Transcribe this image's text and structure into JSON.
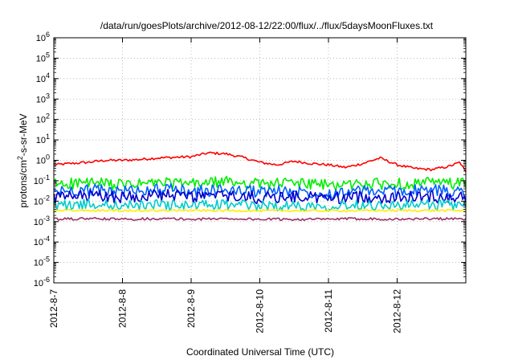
{
  "chart_data": {
    "type": "line",
    "title": "/data/run/goesPlots/archive/2012-08-12/22:00/flux/../flux/5daysMoonFluxes.txt",
    "xlabel": "Coordinated Universal Time (UTC)",
    "ylabel": "protons/cm²-s-sr-MeV",
    "ylabel_parts": {
      "before": "protons/cm",
      "sup": "2",
      "after": "-s-sr-MeV"
    },
    "yscale": "log",
    "ylim": [
      1e-06,
      1000000.0
    ],
    "y_ticks": [
      {
        "value": 1e-06,
        "base": "10",
        "exp": "-6"
      },
      {
        "value": 1e-05,
        "base": "10",
        "exp": "-5"
      },
      {
        "value": 0.0001,
        "base": "10",
        "exp": "-4"
      },
      {
        "value": 0.001,
        "base": "10",
        "exp": "-3"
      },
      {
        "value": 0.01,
        "base": "10",
        "exp": "-2"
      },
      {
        "value": 0.1,
        "base": "10",
        "exp": "-1"
      },
      {
        "value": 1.0,
        "base": "10",
        "exp": "0"
      },
      {
        "value": 10.0,
        "base": "10",
        "exp": "1"
      },
      {
        "value": 100.0,
        "base": "10",
        "exp": "2"
      },
      {
        "value": 1000.0,
        "base": "10",
        "exp": "3"
      },
      {
        "value": 10000.0,
        "base": "10",
        "exp": "4"
      },
      {
        "value": 100000.0,
        "base": "10",
        "exp": "5"
      },
      {
        "value": 1000000.0,
        "base": "10",
        "exp": "6"
      }
    ],
    "xlim": [
      "2012-08-07",
      "2012-08-13"
    ],
    "x_ticks": [
      {
        "date": "2012-08-07",
        "label": "2012-8-7"
      },
      {
        "date": "2012-08-08",
        "label": "2012-8-8"
      },
      {
        "date": "2012-08-09",
        "label": "2012-8-9"
      },
      {
        "date": "2012-08-10",
        "label": "2012-8-10"
      },
      {
        "date": "2012-08-11",
        "label": "2012-8-11"
      },
      {
        "date": "2012-08-12",
        "label": "2012-8-12"
      }
    ],
    "grid": true,
    "series": [
      {
        "color": "#ff0000",
        "data": [
          [
            "2012-08-07 00:00",
            0.6
          ],
          [
            "2012-08-07 06:00",
            0.7
          ],
          [
            "2012-08-07 12:00",
            0.8
          ],
          [
            "2012-08-07 18:00",
            1.0
          ],
          [
            "2012-08-08 00:00",
            1.0
          ],
          [
            "2012-08-08 06:00",
            1.1
          ],
          [
            "2012-08-08 12:00",
            1.3
          ],
          [
            "2012-08-08 18:00",
            1.4
          ],
          [
            "2012-08-09 00:00",
            1.5
          ],
          [
            "2012-08-09 06:00",
            2.3
          ],
          [
            "2012-08-09 12:00",
            2.1
          ],
          [
            "2012-08-09 18:00",
            1.4
          ],
          [
            "2012-08-10 00:00",
            0.8
          ],
          [
            "2012-08-10 06:00",
            0.6
          ],
          [
            "2012-08-10 12:00",
            0.9
          ],
          [
            "2012-08-10 18:00",
            0.7
          ],
          [
            "2012-08-11 00:00",
            0.6
          ],
          [
            "2012-08-11 06:00",
            0.45
          ],
          [
            "2012-08-11 12:00",
            0.7
          ],
          [
            "2012-08-11 18:00",
            1.3
          ],
          [
            "2012-08-12 00:00",
            0.6
          ],
          [
            "2012-08-12 06:00",
            0.4
          ],
          [
            "2012-08-12 12:00",
            0.35
          ],
          [
            "2012-08-12 18:00",
            0.5
          ],
          [
            "2012-08-12 22:00",
            0.8
          ],
          [
            "2012-08-13 00:00",
            0.25
          ]
        ]
      },
      {
        "color": "#00ee00",
        "data": [
          [
            "2012-08-07 00:00",
            0.07
          ],
          [
            "2012-08-07 12:00",
            0.08
          ],
          [
            "2012-08-08 00:00",
            0.06
          ],
          [
            "2012-08-08 12:00",
            0.08
          ],
          [
            "2012-08-09 00:00",
            0.07
          ],
          [
            "2012-08-09 12:00",
            0.09
          ],
          [
            "2012-08-10 00:00",
            0.07
          ],
          [
            "2012-08-10 12:00",
            0.08
          ],
          [
            "2012-08-11 00:00",
            0.06
          ],
          [
            "2012-08-11 12:00",
            0.07
          ],
          [
            "2012-08-12 00:00",
            0.07
          ],
          [
            "2012-08-12 12:00",
            0.08
          ],
          [
            "2012-08-13 00:00",
            0.07
          ]
        ]
      },
      {
        "color": "#0060ff",
        "data": [
          [
            "2012-08-07 00:00",
            0.03
          ],
          [
            "2012-08-07 12:00",
            0.035
          ],
          [
            "2012-08-08 00:00",
            0.03
          ],
          [
            "2012-08-08 12:00",
            0.04
          ],
          [
            "2012-08-09 00:00",
            0.03
          ],
          [
            "2012-08-09 12:00",
            0.035
          ],
          [
            "2012-08-10 00:00",
            0.03
          ],
          [
            "2012-08-10 12:00",
            0.03
          ],
          [
            "2012-08-11 00:00",
            0.025
          ],
          [
            "2012-08-11 12:00",
            0.03
          ],
          [
            "2012-08-12 00:00",
            0.03
          ],
          [
            "2012-08-12 12:00",
            0.035
          ],
          [
            "2012-08-13 00:00",
            0.03
          ]
        ]
      },
      {
        "color": "#0000cc",
        "data": [
          [
            "2012-08-07 00:00",
            0.015
          ],
          [
            "2012-08-07 12:00",
            0.018
          ],
          [
            "2012-08-08 00:00",
            0.016
          ],
          [
            "2012-08-08 12:00",
            0.02
          ],
          [
            "2012-08-09 00:00",
            0.017
          ],
          [
            "2012-08-09 12:00",
            0.018
          ],
          [
            "2012-08-10 00:00",
            0.015
          ],
          [
            "2012-08-10 12:00",
            0.017
          ],
          [
            "2012-08-11 00:00",
            0.014
          ],
          [
            "2012-08-11 12:00",
            0.016
          ],
          [
            "2012-08-12 00:00",
            0.015
          ],
          [
            "2012-08-12 12:00",
            0.017
          ],
          [
            "2012-08-13 00:00",
            0.016
          ]
        ]
      },
      {
        "color": "#00cccc",
        "data": [
          [
            "2012-08-07 00:00",
            0.006
          ],
          [
            "2012-08-07 12:00",
            0.007
          ],
          [
            "2012-08-08 00:00",
            0.006
          ],
          [
            "2012-08-08 12:00",
            0.007
          ],
          [
            "2012-08-09 00:00",
            0.006
          ],
          [
            "2012-08-09 12:00",
            0.007
          ],
          [
            "2012-08-10 00:00",
            0.006
          ],
          [
            "2012-08-10 12:00",
            0.006
          ],
          [
            "2012-08-11 00:00",
            0.006
          ],
          [
            "2012-08-11 12:00",
            0.007
          ],
          [
            "2012-08-12 00:00",
            0.006
          ],
          [
            "2012-08-12 12:00",
            0.007
          ],
          [
            "2012-08-13 00:00",
            0.006
          ]
        ]
      },
      {
        "color": "#ffee00",
        "data": [
          [
            "2012-08-07 00:00",
            0.0035
          ],
          [
            "2012-08-08 00:00",
            0.0035
          ],
          [
            "2012-08-09 00:00",
            0.0035
          ],
          [
            "2012-08-10 00:00",
            0.0034
          ],
          [
            "2012-08-11 00:00",
            0.0034
          ],
          [
            "2012-08-12 00:00",
            0.0035
          ],
          [
            "2012-08-13 00:00",
            0.0035
          ]
        ]
      },
      {
        "color": "#993366",
        "data": [
          [
            "2012-08-07 00:00",
            0.0013
          ],
          [
            "2012-08-07 12:00",
            0.0014
          ],
          [
            "2012-08-08 00:00",
            0.0013
          ],
          [
            "2012-08-08 12:00",
            0.0014
          ],
          [
            "2012-08-09 00:00",
            0.0013
          ],
          [
            "2012-08-09 12:00",
            0.0014
          ],
          [
            "2012-08-10 00:00",
            0.0013
          ],
          [
            "2012-08-10 12:00",
            0.0013
          ],
          [
            "2012-08-11 00:00",
            0.0013
          ],
          [
            "2012-08-11 12:00",
            0.0014
          ],
          [
            "2012-08-12 00:00",
            0.0013
          ],
          [
            "2012-08-12 12:00",
            0.0014
          ],
          [
            "2012-08-13 00:00",
            0.0013
          ]
        ]
      }
    ]
  }
}
